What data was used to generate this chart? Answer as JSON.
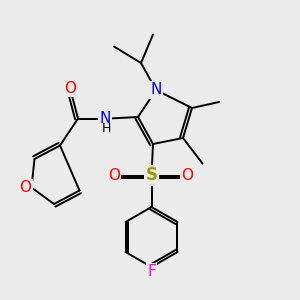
{
  "bg_color": "#ebebeb",
  "atom_colors": {
    "N": "#0000ff",
    "O": "#ff0000",
    "S": "#999900",
    "F": "#ff00ff",
    "C": "#000000"
  },
  "font_size_atom": 11,
  "font_size_h": 9
}
